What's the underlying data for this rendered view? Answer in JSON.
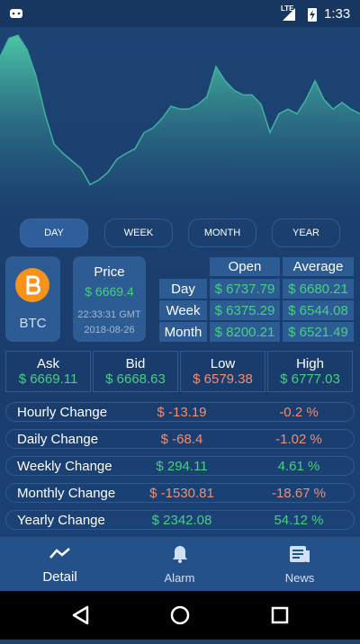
{
  "status_bar": {
    "network": "LTE",
    "time": "1:33"
  },
  "chart_data": {
    "type": "area",
    "color": "#3fb3a0",
    "ylim": [
      0,
      100
    ],
    "values": [
      85,
      95,
      96.5,
      89,
      75,
      55,
      39,
      34,
      30,
      26,
      17.5,
      20,
      24,
      31,
      34,
      36.5,
      45,
      47.5,
      52.5,
      59,
      57.5,
      57.5,
      60,
      64,
      80,
      72.5,
      67.5,
      65,
      65,
      60,
      45,
      55,
      57.5,
      55,
      62.5,
      72.5,
      62.5,
      57.5,
      61,
      57.5,
      55
    ]
  },
  "tabs": [
    "DAY",
    "WEEK",
    "MONTH",
    "YEAR"
  ],
  "coin": {
    "symbol": "BTC"
  },
  "price": {
    "label": "Price",
    "value": "$ 6669.4",
    "time": "22:33:31 GMT",
    "date": "2018-08-26"
  },
  "summary_table": {
    "header": [
      "Open",
      "Average"
    ],
    "rows": [
      [
        "Day",
        "$ 6737.79",
        "$ 6680.21"
      ],
      [
        "Week",
        "$ 6375.29",
        "$ 6544.08"
      ],
      [
        "Month",
        "$ 8200.21",
        "$ 6521.49"
      ]
    ]
  },
  "quotes": [
    {
      "label": "Ask",
      "value": "$ 6669.11"
    },
    {
      "label": "Bid",
      "value": "$ 6668.63"
    },
    {
      "label": "Low",
      "value": "$ 6579.38"
    },
    {
      "label": "High",
      "value": "$ 6777.03"
    }
  ],
  "changes": [
    {
      "label": "Hourly Change",
      "value": "$ -13.19",
      "percent": "-0.2 %"
    },
    {
      "label": "Daily Change",
      "value": "$ -68.4",
      "percent": "-1.02 %"
    },
    {
      "label": "Weekly Change",
      "value": "$ 294.11",
      "percent": "4.61 %"
    },
    {
      "label": "Monthly Change",
      "value": "$ -1530.81",
      "percent": "-18.67 %"
    },
    {
      "label": "Yearly Change",
      "value": "$ 2342.08",
      "percent": "54.12 %"
    }
  ],
  "nav": [
    "Detail",
    "Alarm",
    "News"
  ]
}
